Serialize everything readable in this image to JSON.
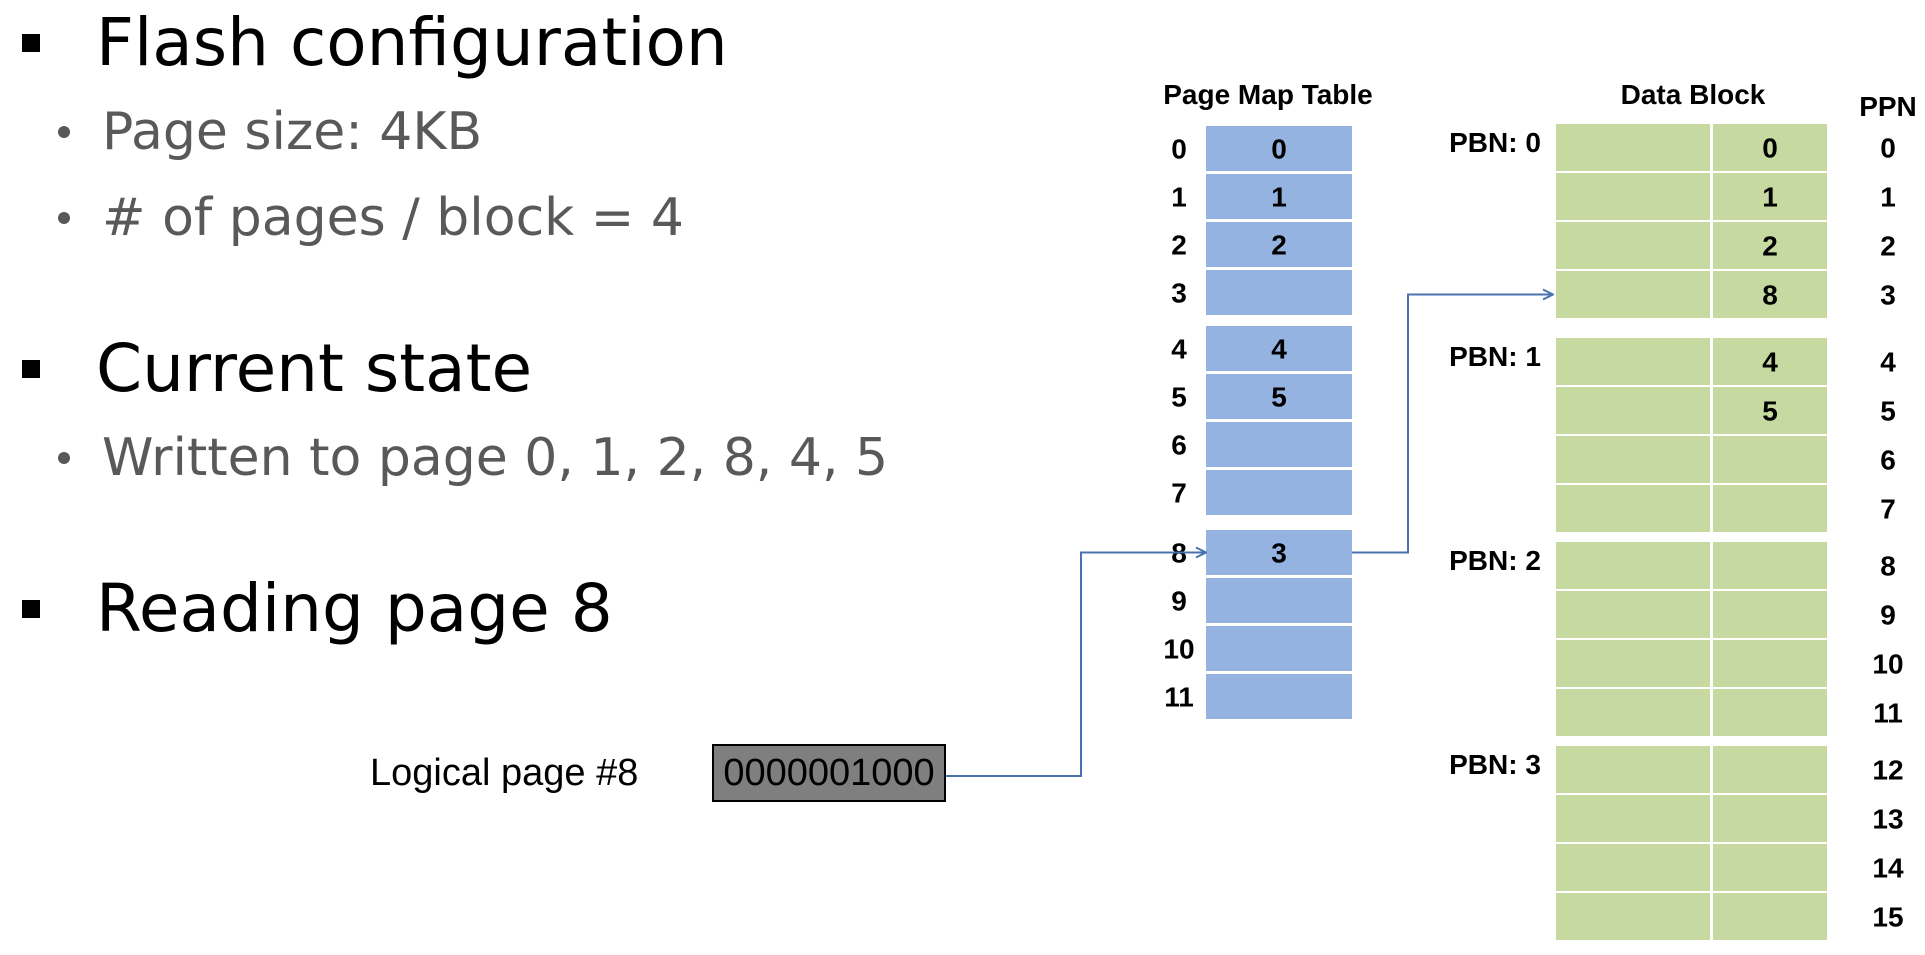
{
  "bullets": {
    "flash_config": "Flash configuration",
    "page_size": "Page size: 4KB",
    "pages_per_block": "# of pages / block = 4",
    "current_state": "Current state",
    "written_pages": "Written to page 0, 1, 2, 8, 4, 5",
    "reading": "Reading page 8"
  },
  "logical_page": {
    "label": "Logical page #8",
    "address": "0000001000"
  },
  "page_map_table": {
    "title": "Page Map Table",
    "rows": [
      {
        "index": "0",
        "value": "0"
      },
      {
        "index": "1",
        "value": "1"
      },
      {
        "index": "2",
        "value": "2"
      },
      {
        "index": "3",
        "value": ""
      },
      {
        "index": "4",
        "value": "4"
      },
      {
        "index": "5",
        "value": "5"
      },
      {
        "index": "6",
        "value": ""
      },
      {
        "index": "7",
        "value": ""
      },
      {
        "index": "8",
        "value": "3"
      },
      {
        "index": "9",
        "value": ""
      },
      {
        "index": "10",
        "value": ""
      },
      {
        "index": "11",
        "value": ""
      }
    ]
  },
  "data_block": {
    "title": "Data Block",
    "ppn_title": "PPN",
    "blocks": [
      {
        "label": "PBN: 0",
        "pages": [
          {
            "ppn": "0",
            "value": "0"
          },
          {
            "ppn": "1",
            "value": "1"
          },
          {
            "ppn": "2",
            "value": "2"
          },
          {
            "ppn": "3",
            "value": "8"
          }
        ]
      },
      {
        "label": "PBN: 1",
        "pages": [
          {
            "ppn": "4",
            "value": "4"
          },
          {
            "ppn": "5",
            "value": "5"
          },
          {
            "ppn": "6",
            "value": ""
          },
          {
            "ppn": "7",
            "value": ""
          }
        ]
      },
      {
        "label": "PBN: 2",
        "pages": [
          {
            "ppn": "8",
            "value": ""
          },
          {
            "ppn": "9",
            "value": ""
          },
          {
            "ppn": "10",
            "value": ""
          },
          {
            "ppn": "11",
            "value": ""
          }
        ]
      },
      {
        "label": "PBN: 3",
        "pages": [
          {
            "ppn": "12",
            "value": ""
          },
          {
            "ppn": "13",
            "value": ""
          },
          {
            "ppn": "14",
            "value": ""
          },
          {
            "ppn": "15",
            "value": ""
          }
        ]
      }
    ]
  },
  "colors": {
    "map_cell": "#95b3e0",
    "data_cell": "#c5d9a0",
    "arrow": "#4a72b0",
    "address_box": "#7f7f7f"
  }
}
